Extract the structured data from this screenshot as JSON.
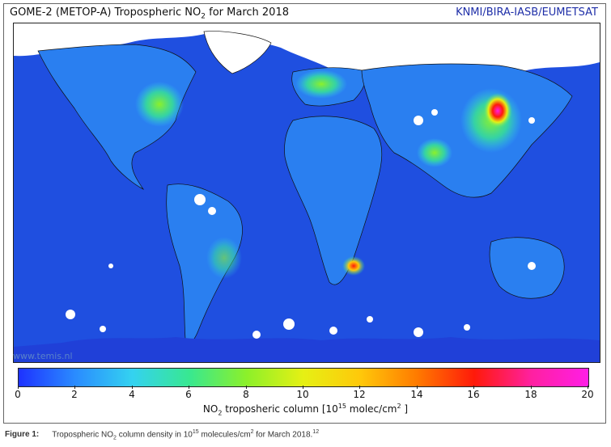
{
  "map": {
    "title_prefix": "GOME-2 (METOP-A) Tropospheric NO",
    "title_sub": "2",
    "title_suffix": "  for March 2018",
    "credit": "KNMI/BIRA-IASB/EUMETSAT",
    "watermark": "www.temis.nl",
    "background_color": "#1f4fe0",
    "land_color": "#2a7ff0",
    "no_data_color": "#ffffff",
    "hotspots": [
      {
        "region": "Eastern China",
        "level": 20
      },
      {
        "region": "Eastern United States",
        "level": 8
      },
      {
        "region": "Western Europe",
        "level": 8
      },
      {
        "region": "South Africa Highveld",
        "level": 16
      },
      {
        "region": "Northern India",
        "level": 8
      }
    ]
  },
  "colorbar": {
    "min": 0,
    "max": 20,
    "ticks": [
      "0",
      "2",
      "4",
      "6",
      "8",
      "10",
      "12",
      "14",
      "16",
      "18",
      "20"
    ],
    "label_prefix": "NO",
    "label_sub": "2",
    "label_mid": " troposheric column [10",
    "label_sup": "15",
    "label_suffix": " molec/cm",
    "label_sup2": "2",
    "label_end": " ]"
  },
  "caption": {
    "figure": "Figure 1:",
    "text_a": "Tropospheric NO",
    "text_sub": "2",
    "text_b": " column density in 10",
    "text_sup": "15",
    "text_c": " molecules/cm",
    "text_sup2": "2",
    "text_d": " for March 2018.",
    "text_ref": "12"
  }
}
